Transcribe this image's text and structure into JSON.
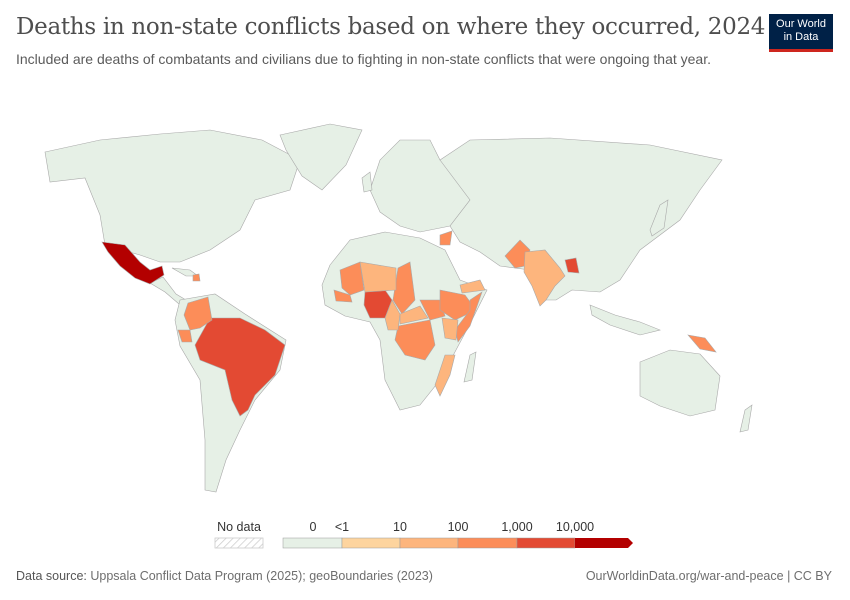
{
  "header": {
    "title": "Deaths in non-state conflicts based on where they occurred, 2024",
    "subtitle": "Included are deaths of combatants and civilians due to fighting in non-state conflicts that were ongoing that year.",
    "logo_line1": "Our World",
    "logo_line2": "in Data"
  },
  "chart_data": {
    "type": "choropleth",
    "year": 2024,
    "legend": {
      "no_data_label": "No data",
      "bins": [
        {
          "from": "0",
          "to": "<1",
          "color": "#e6f0e6"
        },
        {
          "from": "<1",
          "to": "10",
          "color": "#fdd49e"
        },
        {
          "from": "10",
          "to": "100",
          "color": "#fdb57d"
        },
        {
          "from": "100",
          "to": "1,000",
          "color": "#fc8d59"
        },
        {
          "from": "1,000",
          "to": "10,000",
          "color": "#e34a33"
        },
        {
          "from": "10,000",
          "to": "",
          "color": "#b30000"
        }
      ],
      "tick_labels": [
        "0",
        "<1",
        "10",
        "100",
        "1,000",
        "10,000"
      ]
    },
    "countries": [
      {
        "name": "Mexico",
        "bin": "10,000+"
      },
      {
        "name": "Brazil",
        "bin": "1,000–10,000"
      },
      {
        "name": "Nigeria",
        "bin": "1,000–10,000"
      },
      {
        "name": "Bangladesh",
        "bin": "1,000–10,000"
      },
      {
        "name": "Colombia",
        "bin": "100–1,000"
      },
      {
        "name": "Ecuador",
        "bin": "100–1,000"
      },
      {
        "name": "Haiti",
        "bin": "100–1,000"
      },
      {
        "name": "Mali",
        "bin": "100–1,000"
      },
      {
        "name": "Burkina Faso",
        "bin": "100–1,000"
      },
      {
        "name": "Chad",
        "bin": "100–1,000"
      },
      {
        "name": "South Sudan",
        "bin": "100–1,000"
      },
      {
        "name": "Ethiopia",
        "bin": "100–1,000"
      },
      {
        "name": "Somalia",
        "bin": "100–1,000"
      },
      {
        "name": "DR Congo",
        "bin": "100–1,000"
      },
      {
        "name": "Syria",
        "bin": "100–1,000"
      },
      {
        "name": "Pakistan",
        "bin": "100–1,000"
      },
      {
        "name": "Papua New Guinea",
        "bin": "100–1,000"
      },
      {
        "name": "India",
        "bin": "10–100"
      },
      {
        "name": "Yemen",
        "bin": "10–100"
      },
      {
        "name": "Niger",
        "bin": "10–100"
      },
      {
        "name": "Central African Republic",
        "bin": "10–100"
      },
      {
        "name": "Cameroon",
        "bin": "10–100"
      },
      {
        "name": "Kenya",
        "bin": "10–100"
      },
      {
        "name": "Mozambique",
        "bin": "10–100"
      }
    ]
  },
  "footer": {
    "source_label": "Data source:",
    "source_text": "Uppsala Conflict Data Program (2025); geoBoundaries (2023)",
    "link": "OurWorldinData.org/war-and-peace | CC BY"
  }
}
